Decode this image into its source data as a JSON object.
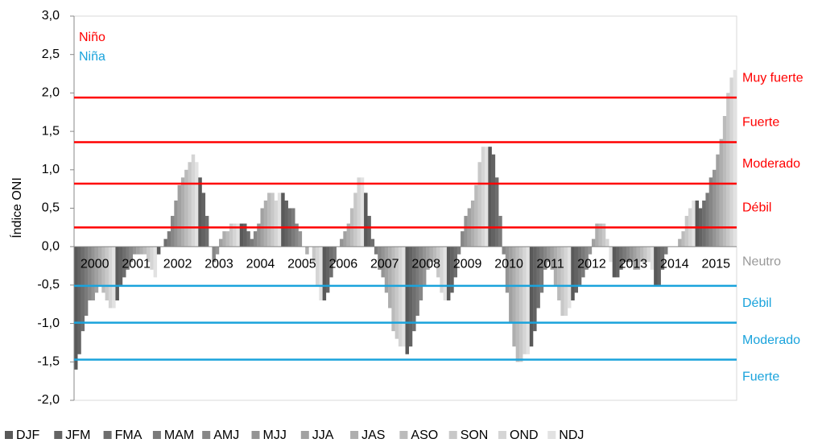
{
  "chart_data": {
    "type": "bar",
    "y_axis_label": "Índice ONI",
    "categories": [
      "2000",
      "2001",
      "2002",
      "2003",
      "2004",
      "2005",
      "2006",
      "2007",
      "2008",
      "2009",
      "2010",
      "2011",
      "2012",
      "2013",
      "2014",
      "2015"
    ],
    "series": [
      {
        "name": "DJF",
        "color": "#595959",
        "values": [
          -1.6,
          -0.7,
          -0.1,
          0.9,
          0.3,
          0.7,
          -0.7,
          0.7,
          -1.4,
          -0.7,
          1.3,
          -1.3,
          -0.7,
          -0.4,
          -0.5,
          0.6
        ]
      },
      {
        "name": "JFM",
        "color": "#636363",
        "values": [
          -1.4,
          -0.5,
          0.0,
          0.7,
          0.3,
          0.6,
          -0.6,
          0.4,
          -1.3,
          -0.6,
          1.2,
          -1.1,
          -0.6,
          -0.4,
          -0.5,
          0.5
        ]
      },
      {
        "name": "FMA",
        "color": "#6e6e6e",
        "values": [
          -1.1,
          -0.4,
          0.1,
          0.4,
          0.2,
          0.5,
          -0.4,
          0.1,
          -1.1,
          -0.4,
          0.9,
          -0.8,
          -0.5,
          -0.3,
          -0.3,
          0.6
        ]
      },
      {
        "name": "MAM",
        "color": "#7a7a7a",
        "values": [
          -0.9,
          -0.3,
          0.2,
          0.0,
          0.1,
          0.5,
          -0.2,
          -0.1,
          -0.9,
          -0.1,
          0.4,
          -0.6,
          -0.4,
          -0.2,
          -0.1,
          0.7
        ]
      },
      {
        "name": "AMJ",
        "color": "#878787",
        "values": [
          -0.7,
          -0.2,
          0.4,
          -0.2,
          0.2,
          0.3,
          0.0,
          -0.3,
          -0.7,
          0.2,
          -0.1,
          -0.3,
          -0.3,
          -0.2,
          0.0,
          0.9
        ]
      },
      {
        "name": "MJJ",
        "color": "#949494",
        "values": [
          -0.7,
          -0.1,
          0.6,
          -0.1,
          0.3,
          0.2,
          0.1,
          -0.4,
          -0.5,
          0.4,
          -0.6,
          -0.2,
          -0.1,
          -0.2,
          0.0,
          1.0
        ]
      },
      {
        "name": "JJA",
        "color": "#a1a1a1",
        "values": [
          -0.6,
          -0.1,
          0.8,
          0.1,
          0.5,
          0.0,
          0.2,
          -0.6,
          -0.3,
          0.5,
          -1.0,
          -0.3,
          0.1,
          -0.3,
          0.0,
          1.2
        ]
      },
      {
        "name": "JAS",
        "color": "#aeaeae",
        "values": [
          -0.5,
          -0.1,
          0.9,
          0.2,
          0.6,
          -0.1,
          0.3,
          -0.8,
          -0.2,
          0.6,
          -1.3,
          -0.5,
          0.3,
          -0.3,
          0.1,
          1.4
        ]
      },
      {
        "name": "ASO",
        "color": "#bbbbbb",
        "values": [
          -0.6,
          -0.1,
          1.0,
          0.2,
          0.7,
          0.0,
          0.5,
          -1.1,
          -0.2,
          0.8,
          -1.5,
          -0.7,
          0.3,
          -0.2,
          0.2,
          1.7
        ]
      },
      {
        "name": "SON",
        "color": "#c8c8c8",
        "values": [
          -0.7,
          -0.2,
          1.1,
          0.3,
          0.7,
          -0.2,
          0.7,
          -1.2,
          -0.4,
          1.1,
          -1.5,
          -0.9,
          0.3,
          -0.2,
          0.4,
          2.0
        ]
      },
      {
        "name": "OND",
        "color": "#d5d5d5",
        "values": [
          -0.8,
          -0.3,
          1.2,
          0.3,
          0.6,
          -0.5,
          0.9,
          -1.3,
          -0.6,
          1.3,
          -1.4,
          -0.9,
          0.1,
          -0.2,
          0.5,
          2.2
        ]
      },
      {
        "name": "NDJ",
        "color": "#e2e2e2",
        "values": [
          -0.8,
          -0.4,
          1.1,
          0.3,
          0.7,
          -0.7,
          0.9,
          -1.3,
          -0.7,
          1.3,
          -1.4,
          -0.8,
          -0.2,
          -0.3,
          0.6,
          2.3
        ]
      }
    ],
    "ylim": [
      -2.0,
      3.0
    ],
    "yticks": [
      {
        "value": -2.0,
        "label": "-2,0"
      },
      {
        "value": -1.5,
        "label": "-1,5"
      },
      {
        "value": -1.0,
        "label": "-1,0"
      },
      {
        "value": -0.5,
        "label": "-0,5"
      },
      {
        "value": 0.0,
        "label": "0,0"
      },
      {
        "value": 0.5,
        "label": "0,5"
      },
      {
        "value": 1.0,
        "label": "1,0"
      },
      {
        "value": 1.5,
        "label": "1,5"
      },
      {
        "value": 2.0,
        "label": "2,0"
      },
      {
        "value": 2.5,
        "label": "2,5"
      },
      {
        "value": 3.0,
        "label": "3,0"
      }
    ],
    "phase_legend": [
      {
        "label": "Niño",
        "color": "#ff0000"
      },
      {
        "label": "Niña",
        "color": "#1aa3dc"
      }
    ],
    "reference_lines": [
      {
        "value": 1.94,
        "label": "Muy fuerte",
        "color": "#ff0000"
      },
      {
        "value": 1.36,
        "label": "Fuerte",
        "color": "#ff0000"
      },
      {
        "value": 0.82,
        "label": "Moderado",
        "color": "#ff0000"
      },
      {
        "value": 0.25,
        "label": "Débil",
        "color": "#ff0000"
      },
      {
        "value": -0.51,
        "label": "Débil",
        "color": "#1aa3dc"
      },
      {
        "value": -0.99,
        "label": "Moderado",
        "color": "#1aa3dc"
      },
      {
        "value": -1.47,
        "label": "Fuerte",
        "color": "#1aa3dc"
      }
    ],
    "neutral_label": "Neutro"
  }
}
